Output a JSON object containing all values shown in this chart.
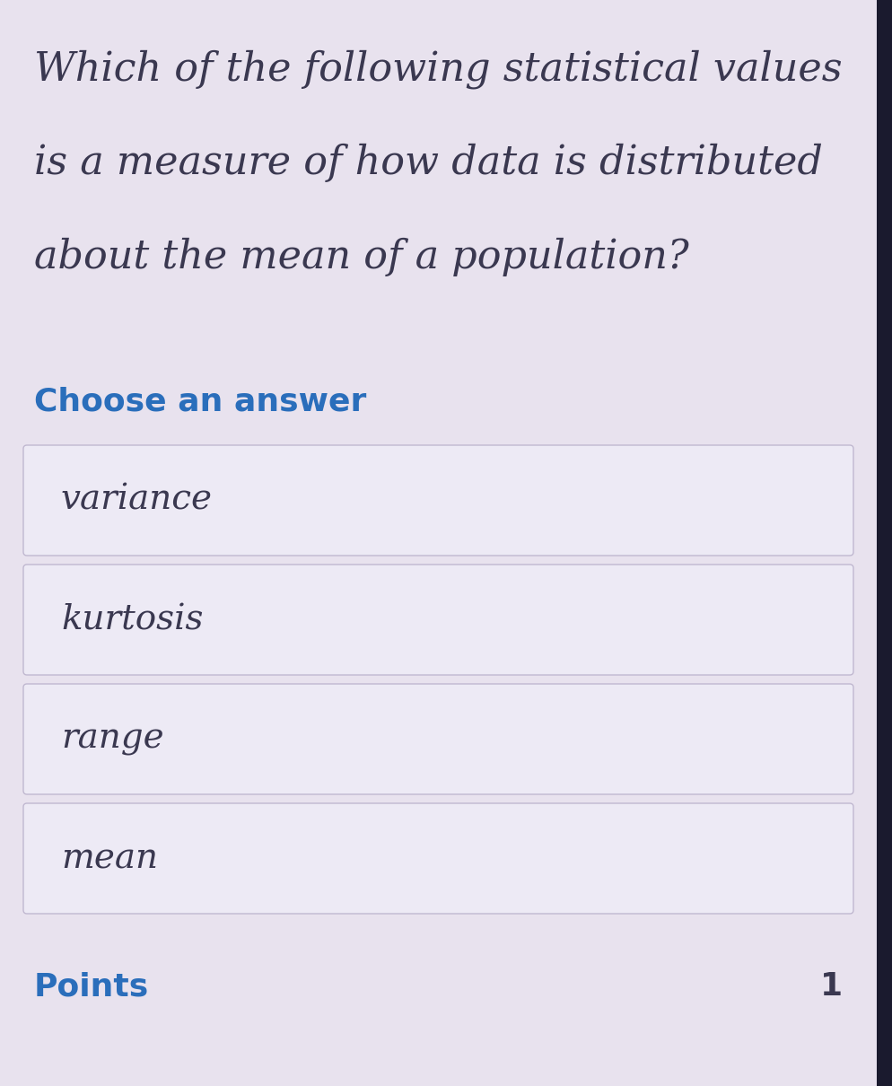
{
  "question_lines": [
    "Which of the following statistical values",
    "is a measure of how data is distributed",
    "about the mean of a population?"
  ],
  "choose_answer_label": "Choose an answer",
  "options": [
    "variance",
    "kurtosis",
    "range",
    "mean"
  ],
  "points_label": "Points",
  "points_value": "1",
  "background_color": "#e8e2ee",
  "question_text_color": "#3a3850",
  "choose_answer_color": "#2a6ebb",
  "option_text_color": "#3a3850",
  "option_box_facecolor": "#edeaf5",
  "option_box_edgecolor": "#c0b8d0",
  "points_color": "#2a6ebb",
  "right_edge_color": "#1a1a2e",
  "question_fontsize": 32,
  "choose_answer_fontsize": 26,
  "option_fontsize": 28,
  "points_fontsize": 26,
  "fig_width": 9.95,
  "fig_height": 12.1,
  "dpi": 100
}
